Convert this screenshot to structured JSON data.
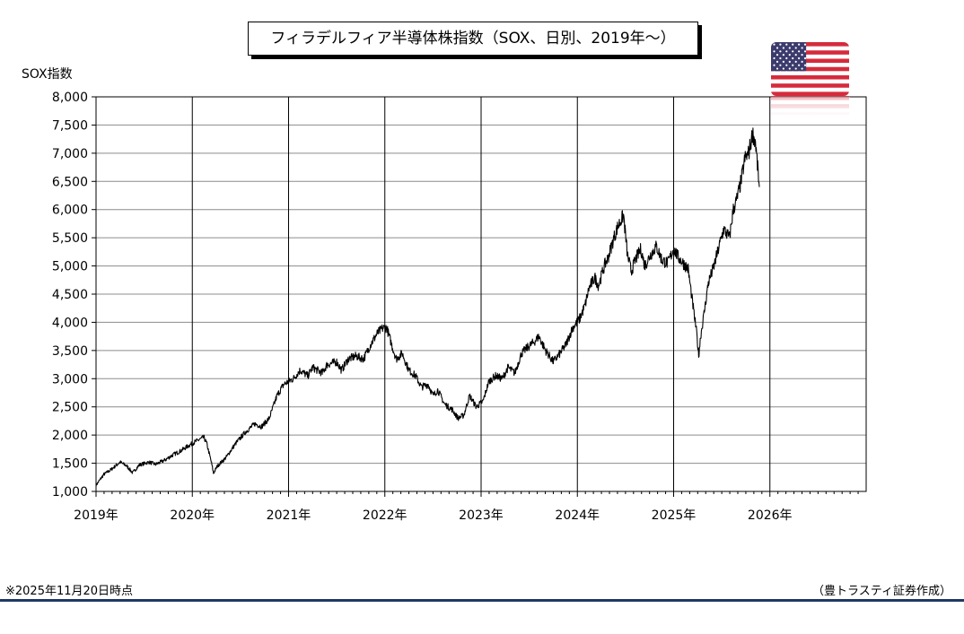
{
  "chart_data": {
    "type": "line",
    "title": "フィラデルフィア半導体株指数（SOX、日別、2019年～）",
    "ylabel": "SOX指数",
    "xlabel": "",
    "ylim": [
      1000,
      8000
    ],
    "yticks": [
      "1,000",
      "1,500",
      "2,000",
      "2,500",
      "3,000",
      "3,500",
      "4,000",
      "4,500",
      "5,000",
      "5,500",
      "6,000",
      "6,500",
      "7,000",
      "7,500",
      "8,000"
    ],
    "xticks": [
      "2019年",
      "2020年",
      "2021年",
      "2022年",
      "2023年",
      "2024年",
      "2025年",
      "2026年"
    ],
    "xlim": [
      2019.0,
      2027.0
    ],
    "grid": true,
    "series": [
      {
        "values_note": "approximate daily SOX index keypoints (decimal year, index level)",
        "x": [
          2019.0,
          2019.08,
          2019.15,
          2019.25,
          2019.32,
          2019.38,
          2019.45,
          2019.55,
          2019.62,
          2019.72,
          2019.8,
          2019.88,
          2019.95,
          2020.05,
          2020.12,
          2020.15,
          2020.2,
          2020.22,
          2020.26,
          2020.35,
          2020.45,
          2020.55,
          2020.65,
          2020.72,
          2020.8,
          2020.88,
          2020.95,
          2021.05,
          2021.12,
          2021.2,
          2021.25,
          2021.35,
          2021.4,
          2021.5,
          2021.55,
          2021.62,
          2021.7,
          2021.78,
          2021.85,
          2021.92,
          2021.98,
          2022.02,
          2022.08,
          2022.12,
          2022.18,
          2022.25,
          2022.32,
          2022.38,
          2022.45,
          2022.5,
          2022.55,
          2022.62,
          2022.7,
          2022.76,
          2022.82,
          2022.88,
          2022.95,
          2023.02,
          2023.08,
          2023.15,
          2023.22,
          2023.28,
          2023.35,
          2023.42,
          2023.48,
          2023.55,
          2023.6,
          2023.67,
          2023.75,
          2023.82,
          2023.88,
          2023.95,
          2024.02,
          2024.08,
          2024.12,
          2024.18,
          2024.22,
          2024.28,
          2024.32,
          2024.38,
          2024.42,
          2024.48,
          2024.52,
          2024.56,
          2024.6,
          2024.66,
          2024.7,
          2024.76,
          2024.82,
          2024.88,
          2024.94,
          2025.0,
          2025.05,
          2025.1,
          2025.15,
          2025.2,
          2025.24,
          2025.26,
          2025.28,
          2025.32,
          2025.36,
          2025.42,
          2025.48,
          2025.52,
          2025.58,
          2025.62,
          2025.66,
          2025.7,
          2025.74,
          2025.78,
          2025.82,
          2025.85,
          2025.87,
          2025.89
        ],
        "values": [
          1110,
          1300,
          1380,
          1520,
          1450,
          1330,
          1470,
          1520,
          1480,
          1560,
          1650,
          1720,
          1800,
          1900,
          1960,
          1850,
          1500,
          1320,
          1450,
          1600,
          1850,
          2050,
          2200,
          2150,
          2300,
          2700,
          2900,
          3000,
          3150,
          3050,
          3200,
          3100,
          3250,
          3300,
          3150,
          3350,
          3400,
          3350,
          3600,
          3800,
          3900,
          3900,
          3550,
          3350,
          3450,
          3150,
          3050,
          2850,
          2900,
          2700,
          2800,
          2550,
          2450,
          2300,
          2350,
          2700,
          2500,
          2600,
          2950,
          3050,
          3000,
          3200,
          3100,
          3450,
          3550,
          3650,
          3750,
          3500,
          3300,
          3450,
          3600,
          3900,
          4050,
          4300,
          4600,
          4800,
          4650,
          5000,
          5150,
          5500,
          5700,
          5900,
          5200,
          4900,
          5100,
          5300,
          5000,
          5200,
          5350,
          5100,
          5050,
          5300,
          5150,
          5050,
          4950,
          4300,
          3800,
          3400,
          3750,
          4200,
          4700,
          5000,
          5400,
          5650,
          5500,
          6000,
          6200,
          6500,
          6900,
          7000,
          7350,
          7200,
          6800,
          6400
        ]
      }
    ],
    "line_color": "#000000",
    "grid_color": "#8c8c8c"
  },
  "footnote": "※2025年11月20日時点",
  "credit": "（豊トラスティ証券作成）",
  "flag_icon": "us-flag-icon",
  "colors": {
    "footer_rule": "#1f3864",
    "flag_red": "#d52b3c",
    "flag_blue": "#3b3b6d"
  }
}
